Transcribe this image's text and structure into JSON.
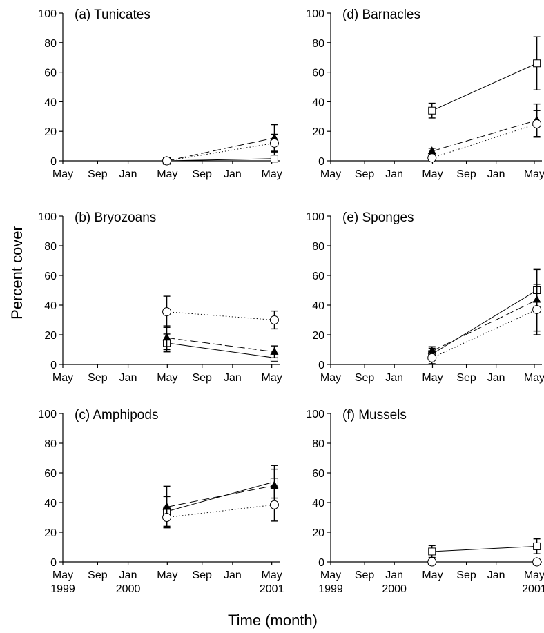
{
  "figure": {
    "ylabel": "Percent cover",
    "xlabel": "Time (month)"
  },
  "chart_data": [
    {
      "type": "line",
      "panel": "a",
      "title": "(a) Tunicates",
      "x_ticks": [
        "May",
        "Sep",
        "Jan",
        "May",
        "Sep",
        "Jan",
        "May"
      ],
      "year_labels": [],
      "y_ticks": [
        "0",
        "20",
        "40",
        "60",
        "80",
        "100"
      ],
      "ylim": [
        0,
        100
      ],
      "x": [
        2000.37,
        2001.4
      ],
      "series": [
        {
          "marker": "square-open",
          "line": "solid",
          "values": [
            0,
            1.5
          ],
          "errors": [
            0,
            5
          ]
        },
        {
          "marker": "triangle-filled",
          "line": "dashed",
          "values": [
            0,
            15.5
          ],
          "errors": [
            0,
            9
          ]
        },
        {
          "marker": "circle-open",
          "line": "dotted",
          "values": [
            0,
            12
          ],
          "errors": [
            0,
            6
          ]
        }
      ]
    },
    {
      "type": "line",
      "panel": "b",
      "title": "(b) Bryozoans",
      "x_ticks": [
        "May",
        "Sep",
        "Jan",
        "May",
        "Sep",
        "Jan",
        "May"
      ],
      "year_labels": [],
      "y_ticks": [
        "0",
        "20",
        "40",
        "60",
        "80",
        "100"
      ],
      "ylim": [
        0,
        100
      ],
      "x": [
        2000.37,
        2001.4
      ],
      "series": [
        {
          "marker": "square-open",
          "line": "solid",
          "values": [
            14.5,
            4.5
          ],
          "errors": [
            6,
            2
          ]
        },
        {
          "marker": "triangle-filled",
          "line": "dashed",
          "values": [
            18,
            8.5
          ],
          "errors": [
            8,
            4
          ]
        },
        {
          "marker": "circle-open",
          "line": "dotted",
          "values": [
            35.5,
            30
          ],
          "errors": [
            10.5,
            6
          ]
        }
      ]
    },
    {
      "type": "line",
      "panel": "c",
      "title": "(c) Amphipods",
      "x_ticks": [
        "May",
        "Sep",
        "Jan",
        "May",
        "Sep",
        "Jan",
        "May"
      ],
      "year_labels": [
        "1999",
        "2000",
        "2001"
      ],
      "y_ticks": [
        "0",
        "20",
        "40",
        "60",
        "80",
        "100"
      ],
      "ylim": [
        0,
        100
      ],
      "x": [
        2000.37,
        2001.4
      ],
      "series": [
        {
          "marker": "square-open",
          "line": "solid",
          "values": [
            34,
            54
          ],
          "errors": [
            10,
            11
          ]
        },
        {
          "marker": "triangle-filled",
          "line": "dashed",
          "values": [
            37,
            51.5
          ],
          "errors": [
            14,
            11
          ]
        },
        {
          "marker": "circle-open",
          "line": "dotted",
          "values": [
            30,
            38.5
          ],
          "errors": [
            7,
            11
          ]
        }
      ]
    },
    {
      "type": "line",
      "panel": "d",
      "title": "(d) Barnacles",
      "x_ticks": [
        "May",
        "Sep",
        "Jan",
        "May",
        "Sep",
        "Jan",
        "May"
      ],
      "year_labels": [],
      "y_ticks": [
        "0",
        "20",
        "40",
        "60",
        "80",
        "100"
      ],
      "ylim": [
        0,
        100
      ],
      "x": [
        2000.37,
        2001.4
      ],
      "series": [
        {
          "marker": "square-open",
          "line": "solid",
          "values": [
            34,
            66
          ],
          "errors": [
            5,
            18
          ]
        },
        {
          "marker": "triangle-filled",
          "line": "dashed",
          "values": [
            6.5,
            27.5
          ],
          "errors": [
            2,
            11
          ]
        },
        {
          "marker": "circle-open",
          "line": "dotted",
          "values": [
            2,
            25
          ],
          "errors": [
            1,
            9
          ]
        }
      ]
    },
    {
      "type": "line",
      "panel": "e",
      "title": "(e) Sponges",
      "x_ticks": [
        "May",
        "Sep",
        "Jan",
        "May",
        "Sep",
        "Jan",
        "May"
      ],
      "year_labels": [],
      "y_ticks": [
        "0",
        "20",
        "40",
        "60",
        "80",
        "100"
      ],
      "ylim": [
        0,
        100
      ],
      "x": [
        2000.37,
        2001.4
      ],
      "series": [
        {
          "marker": "square-open",
          "line": "solid",
          "values": [
            7,
            50
          ],
          "errors": [
            4,
            14
          ]
        },
        {
          "marker": "triangle-filled",
          "line": "dashed",
          "values": [
            9,
            43.5
          ],
          "errors": [
            3,
            21
          ]
        },
        {
          "marker": "circle-open",
          "line": "dotted",
          "values": [
            4.5,
            37
          ],
          "errors": [
            4,
            17
          ]
        }
      ]
    },
    {
      "type": "line",
      "panel": "f",
      "title": "(f) Mussels",
      "x_ticks": [
        "May",
        "Sep",
        "Jan",
        "May",
        "Sep",
        "Jan",
        "May"
      ],
      "year_labels": [
        "1999",
        "2000",
        "2001"
      ],
      "y_ticks": [
        "0",
        "20",
        "40",
        "60",
        "80",
        "100"
      ],
      "ylim": [
        0,
        100
      ],
      "x": [
        2000.37,
        2001.4
      ],
      "series": [
        {
          "marker": "square-open",
          "line": "solid",
          "values": [
            7,
            10.5
          ],
          "errors": [
            4,
            5
          ]
        },
        {
          "marker": "triangle-filled",
          "line": "dashed",
          "values": [
            0,
            0
          ],
          "errors": [
            0,
            0
          ]
        },
        {
          "marker": "circle-open",
          "line": "dotted",
          "values": [
            0,
            0
          ],
          "errors": [
            0,
            0
          ]
        }
      ]
    }
  ]
}
